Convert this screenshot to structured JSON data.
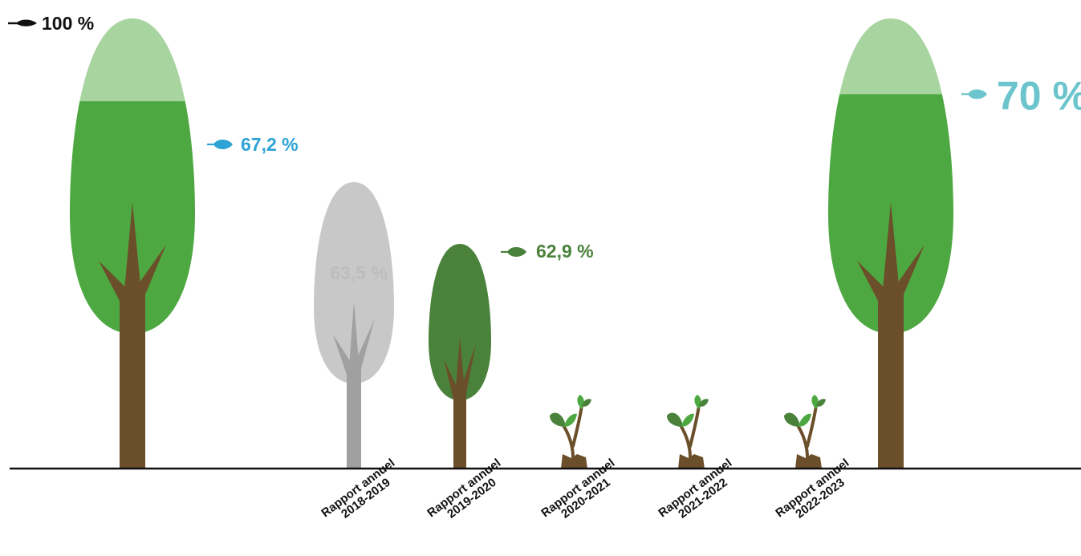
{
  "colors": {
    "trunk": "#6b4f2a",
    "crown_green": "#4ea842",
    "crown_light": "#a8d4a0",
    "crown_dark_green": "#4a823b",
    "crown_grey": "#c8c8c8",
    "trunk_grey": "#a0a0a0",
    "blue_label": "#2ea3d6",
    "teal_label": "#6cc4cc",
    "green_label": "#4a823b",
    "grey_label": "#bdbdbd",
    "black_label": "#111111",
    "baseline": "#111111"
  },
  "chart_data": {
    "type": "bar",
    "title": "",
    "xlabel": "",
    "ylabel": "",
    "reference_label": "100 %",
    "items": [
      {
        "key": "ref_tree",
        "category": "",
        "filled_pct": 67.2,
        "label": "67,2 %",
        "style": "full-tree",
        "label_color": "blue_label"
      },
      {
        "key": "y2018",
        "category_line1": "Rapport annuel",
        "category_line2": "2018-2019",
        "value": 63.5,
        "label": "63,5 %",
        "style": "grey-tree"
      },
      {
        "key": "y2019",
        "category_line1": "Rapport annuel",
        "category_line2": "2019-2020",
        "value": 62.9,
        "label": "62,9 %",
        "style": "dark-tree",
        "label_color": "green_label"
      },
      {
        "key": "y2020",
        "category_line1": "Rapport annuel",
        "category_line2": "2020-2021",
        "value": null,
        "label": "",
        "style": "sprout"
      },
      {
        "key": "y2021",
        "category_line1": "Rapport annuel",
        "category_line2": "2021-2022",
        "value": null,
        "label": "",
        "style": "sprout"
      },
      {
        "key": "y2022",
        "category_line1": "Rapport annuel",
        "category_line2": "2022-2023",
        "value": null,
        "label": "",
        "style": "sprout"
      },
      {
        "key": "target_tree",
        "category": "",
        "filled_pct": 70,
        "label": "70 %",
        "style": "full-tree",
        "label_color": "teal_label"
      }
    ]
  }
}
